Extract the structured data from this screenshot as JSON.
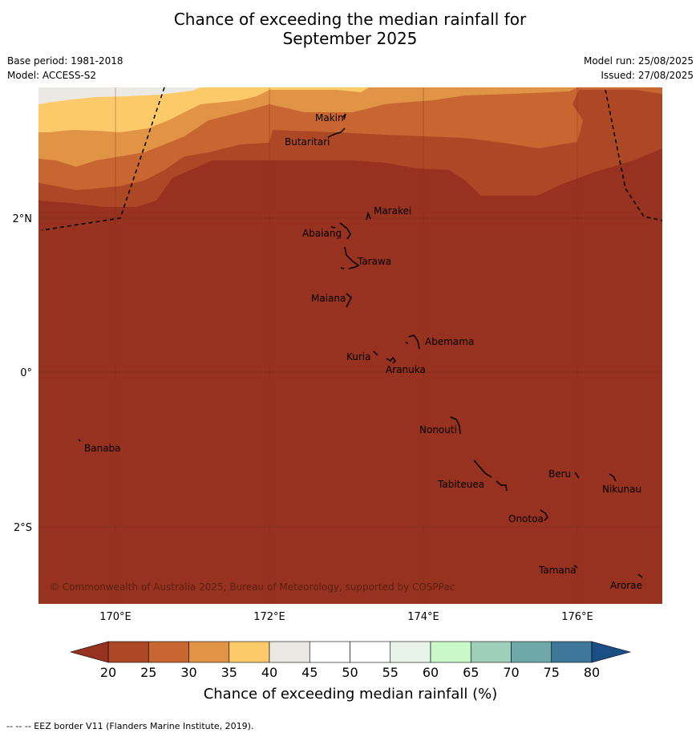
{
  "header": {
    "title_line1": "Chance of exceeding the median rainfall for",
    "title_line2": "September 2025",
    "base_period": "Base period: 1981-2018",
    "model": "Model: ACCESS-S2",
    "model_run": "Model run: 25/08/2025",
    "issued": "Issued: 27/08/2025"
  },
  "map": {
    "x_ticks": [
      "170°E",
      "172°E",
      "174°E",
      "176°E"
    ],
    "y_ticks": [
      "2°N",
      "0°",
      "2°S"
    ],
    "islands": [
      "Makin",
      "Butaritari",
      "Marakei",
      "Abaiang",
      "Tarawa",
      "Maiana",
      "Abemama",
      "Kuria",
      "Aranuka",
      "Nonouti",
      "Banaba",
      "Beru",
      "Nikunau",
      "Tabiteuea",
      "Onotoa",
      "Tamana",
      "Arorae"
    ],
    "copyright": "© Commonwealth of Australia 2025, Bureau of Meteorology, supported by COSPPac",
    "band_colors": {
      "lt20": "#96321f",
      "20_25": "#ad4827",
      "25_30": "#c86632",
      "30_35": "#e29446",
      "35_40": "#fdca6a",
      "40_45": "#ebe9e4"
    }
  },
  "colorbar": {
    "ticks": [
      "20",
      "25",
      "30",
      "35",
      "40",
      "45",
      "50",
      "55",
      "60",
      "65",
      "70",
      "75",
      "80"
    ],
    "colors": [
      "#ad4827",
      "#c86632",
      "#e29446",
      "#fdca6a",
      "#ebe9e4",
      "#ffffff",
      "#ffffff",
      "#e9f4e9",
      "#c9f9c9",
      "#9dcfb9",
      "#6fa8a8",
      "#3e7799"
    ],
    "low_color": "#96321f",
    "high_color": "#1b4e84",
    "label": "Chance of exceeding median rainfall (%)"
  },
  "footer": {
    "eez_note": "--  --  -- EEZ border V11 (Flanders Marine Institute, 2019)."
  }
}
